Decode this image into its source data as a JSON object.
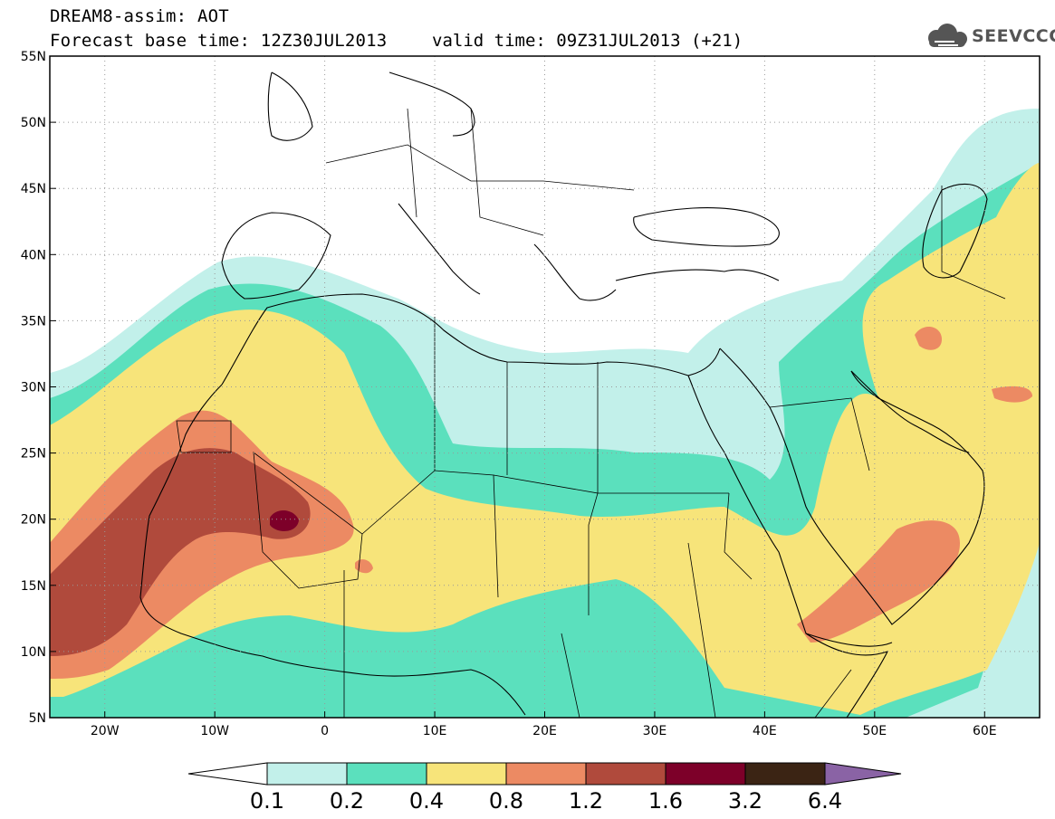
{
  "header": {
    "title": "DREAM8-assim: AOT",
    "base_time": "Forecast base time: 12Z30JUL2013",
    "valid_time": "valid time: 09Z31JUL2013 (+21)",
    "logo_text": "SEEVCCC",
    "logo_icon": "cloud-icon"
  },
  "map": {
    "lon_range": [
      -25,
      65
    ],
    "lat_range": [
      5,
      55
    ],
    "lon_ticks": [
      {
        "value": -20,
        "label": "20W"
      },
      {
        "value": -10,
        "label": "10W"
      },
      {
        "value": 0,
        "label": "0"
      },
      {
        "value": 10,
        "label": "10E"
      },
      {
        "value": 20,
        "label": "20E"
      },
      {
        "value": 30,
        "label": "30E"
      },
      {
        "value": 40,
        "label": "40E"
      },
      {
        "value": 50,
        "label": "50E"
      },
      {
        "value": 60,
        "label": "60E"
      }
    ],
    "lat_ticks": [
      {
        "value": 5,
        "label": "5N"
      },
      {
        "value": 10,
        "label": "10N"
      },
      {
        "value": 15,
        "label": "15N"
      },
      {
        "value": 20,
        "label": "20N"
      },
      {
        "value": 25,
        "label": "25N"
      },
      {
        "value": 30,
        "label": "30N"
      },
      {
        "value": 35,
        "label": "35N"
      },
      {
        "value": 40,
        "label": "40N"
      },
      {
        "value": 45,
        "label": "45N"
      },
      {
        "value": 50,
        "label": "50N"
      },
      {
        "value": 55,
        "label": "55N"
      }
    ],
    "grid": true
  },
  "colorbar": {
    "levels": [
      "0.1",
      "0.2",
      "0.4",
      "0.8",
      "1.2",
      "1.6",
      "3.2",
      "6.4"
    ],
    "colors": [
      "#ffffff",
      "#c2f0ea",
      "#5be0bd",
      "#f7e47a",
      "#ec8a63",
      "#b04a3c",
      "#7d0029",
      "#3b2414",
      "#8a63a5"
    ]
  }
}
